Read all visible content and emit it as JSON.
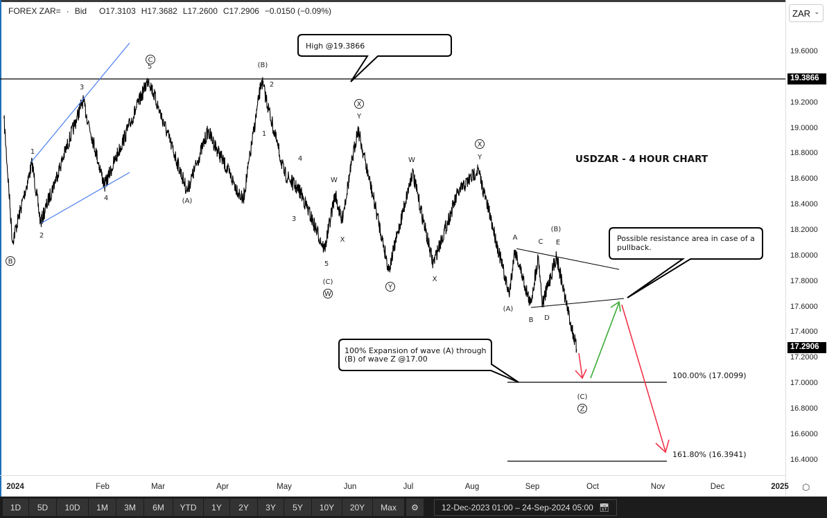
{
  "header": {
    "symbol": "FOREX ZAR=",
    "sep": "·",
    "quote_type": "Bid",
    "open": "O17.3103",
    "high": "H17.3682",
    "low": "L17.2600",
    "close": "C17.2906",
    "change": "−0.0150 (−0.09%)"
  },
  "currency_select": {
    "value": "ZAR"
  },
  "toolbar": {
    "ranges": [
      "1D",
      "5D",
      "10D",
      "1M",
      "3M",
      "6M",
      "YTD",
      "1Y",
      "2Y",
      "3Y",
      "5Y",
      "10Y",
      "20Y",
      "Max"
    ],
    "date_range": "12-Dec-2023 01:00  –  24-Sep-2024 05:00"
  },
  "colors": {
    "price": "#000000",
    "wedge": "#4a7cf0",
    "bull_arrow": "#3aaa35",
    "bear_arrow": "#f0344a",
    "wave_red": "#f0344a"
  },
  "chart_data": {
    "type": "line",
    "title": "USDZAR - 4 HOUR CHART",
    "x_ticks": [
      "2024",
      "Feb",
      "Mar",
      "Apr",
      "May",
      "Jun",
      "Jul",
      "Aug",
      "Sep",
      "Oct",
      "Nov",
      "Dec",
      "2025"
    ],
    "y_ticks": [
      "19.6000",
      "19.4000",
      "19.2000",
      "19.0000",
      "18.8000",
      "18.6000",
      "18.4000",
      "18.2000",
      "18.0000",
      "17.8000",
      "17.6000",
      "17.4000",
      "17.2000",
      "17.0000",
      "16.8000",
      "16.6000",
      "16.4000"
    ],
    "ylim": [
      16.3,
      19.75
    ],
    "grid": false,
    "series": [
      {
        "values": [
          [
            "2023-12-28",
            19.08
          ],
          [
            "2023-12-31",
            18.11
          ],
          [
            "2024-01-07",
            18.73
          ],
          [
            "2024-01-10",
            18.26
          ],
          [
            "2024-01-25",
            19.22
          ],
          [
            "2024-02-02",
            18.55
          ],
          [
            "2024-02-25",
            19.39
          ],
          [
            "2024-03-15",
            18.51
          ],
          [
            "2024-03-25",
            18.98
          ],
          [
            "2024-04-11",
            18.43
          ],
          [
            "2024-04-20",
            19.38
          ],
          [
            "2024-05-01",
            18.65
          ],
          [
            "2024-05-09",
            18.49
          ],
          [
            "2024-05-20",
            18.05
          ],
          [
            "2024-05-25",
            18.49
          ],
          [
            "2024-05-28",
            18.27
          ],
          [
            "2024-06-05",
            19.0
          ],
          [
            "2024-06-15",
            18.32
          ],
          [
            "2024-06-21",
            17.89
          ],
          [
            "2024-07-03",
            18.66
          ],
          [
            "2024-07-13",
            17.94
          ],
          [
            "2024-07-25",
            18.49
          ],
          [
            "2024-08-04",
            18.68
          ],
          [
            "2024-08-11",
            18.27
          ],
          [
            "2024-08-20",
            17.7
          ],
          [
            "2024-08-23",
            18.05
          ],
          [
            "2024-08-31",
            17.62
          ],
          [
            "2024-09-04",
            18.0
          ],
          [
            "2024-09-06",
            17.62
          ],
          [
            "2024-09-13",
            18.0
          ],
          [
            "2024-09-18",
            17.62
          ],
          [
            "2024-09-23",
            17.27
          ]
        ]
      }
    ],
    "price_labels": {
      "high": "19.3866",
      "last": "17.2906"
    },
    "wave_labels": [
      "B",
      "1",
      "2",
      "3",
      "4",
      "C",
      "5",
      "(A)",
      "(B)",
      "2",
      "1",
      "4",
      "3",
      "W",
      "X",
      "5",
      "(C)",
      "W",
      "X",
      "Y",
      "Y",
      "W",
      "X",
      "X",
      "Y",
      "A",
      "(B)",
      "C",
      "E",
      "(A)",
      "B",
      "D",
      "(C)",
      "Z"
    ],
    "annotations": {
      "high_note": "High @19.3866",
      "resistance_note_1": "Possible resistance area in case of a",
      "resistance_note_2": "pullback.",
      "expansion_note_1": "100% Expansion of wave (A) through",
      "expansion_note_2": "(B) of wave Z @17.00",
      "fib_100": "100.00% (17.0099)",
      "fib_161": "161.80% (16.3941)"
    }
  }
}
